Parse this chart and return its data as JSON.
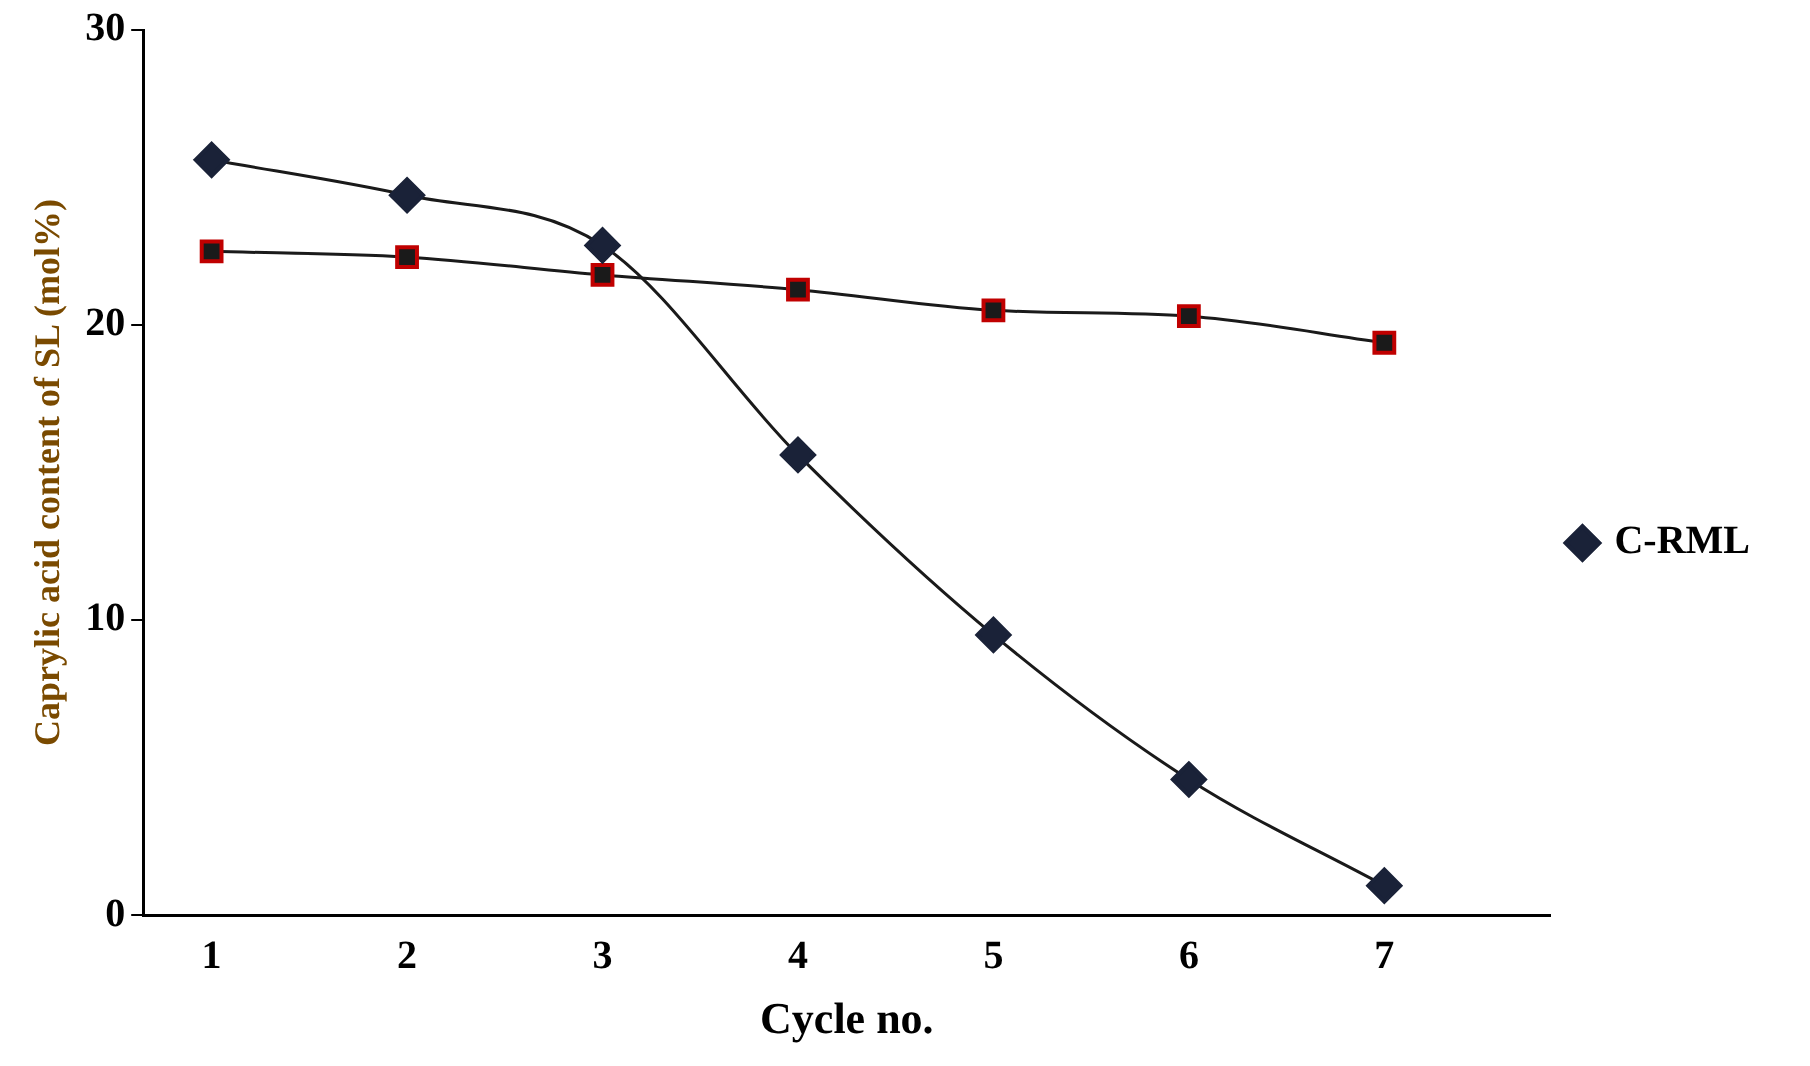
{
  "chart_data": {
    "type": "line",
    "xlabel": "Cycle no.",
    "ylabel": "Caprylic acid content of SL (mol%)",
    "x": [
      1,
      2,
      3,
      4,
      5,
      6,
      7
    ],
    "xlim": [
      0.65,
      7.85
    ],
    "xticks": [
      1,
      2,
      3,
      4,
      5,
      6,
      7
    ],
    "ylim": [
      0,
      30
    ],
    "yticks": [
      0,
      10,
      20,
      30
    ],
    "series": [
      {
        "name": "C-RML",
        "color": "#1a2238",
        "marker": "diamond",
        "values": [
          25.6,
          24.4,
          22.7,
          15.6,
          9.5,
          4.6,
          1.0
        ]
      },
      {
        "color": "#c00000",
        "marker": "square",
        "values": [
          22.5,
          22.3,
          21.7,
          21.2,
          20.5,
          20.3,
          19.4
        ]
      }
    ],
    "legend": "right",
    "grid": false
  }
}
